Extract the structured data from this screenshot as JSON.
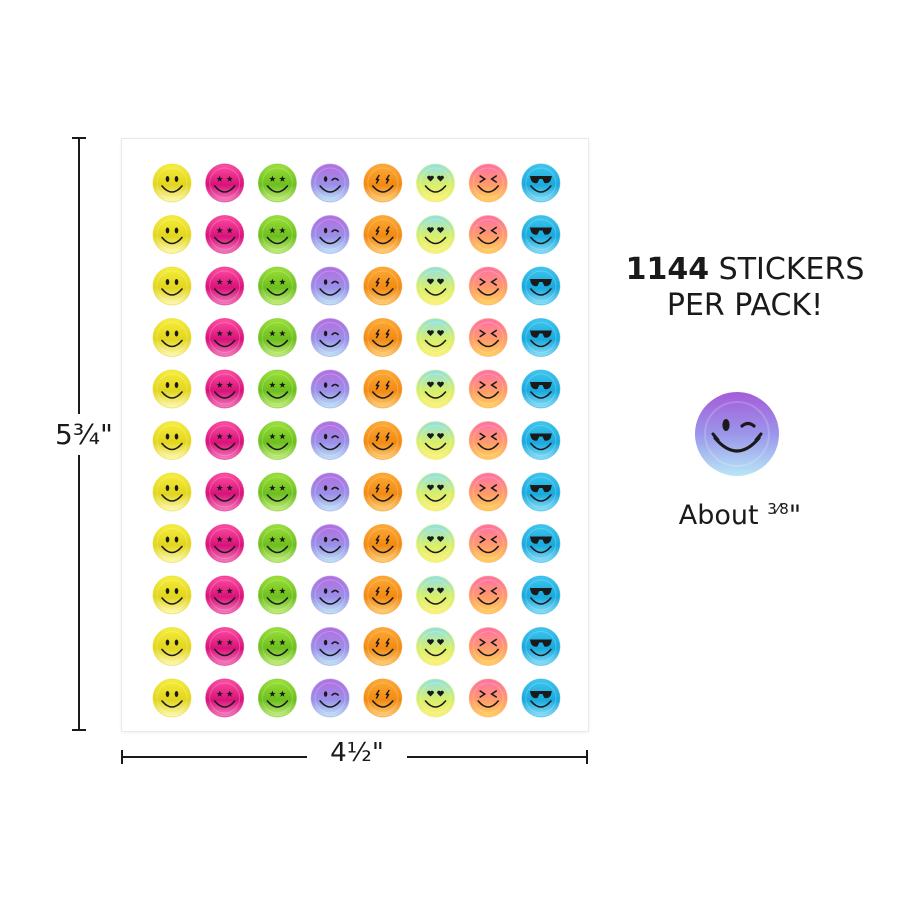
{
  "dimensions": {
    "height_label": "5¾\"",
    "width_label": "4½\""
  },
  "pack": {
    "count": "1144",
    "count_suffix": " STICKERS",
    "line2": "PER PACK!"
  },
  "sample": {
    "icon": "winking-smiley-icon",
    "size_prefix": "About ",
    "size_fraction": "3⁄8",
    "size_suffix": "\""
  },
  "sheet": {
    "rows": 11,
    "columns": [
      {
        "design": "classic-smile",
        "colors": [
          "#f7ee3c",
          "#e2d51d",
          "#fff9b8"
        ]
      },
      {
        "design": "star-eyes",
        "colors": [
          "#ff4fa3",
          "#d9117a",
          "#f47fc0"
        ]
      },
      {
        "design": "star-eyes-green",
        "colors": [
          "#9de13a",
          "#6cbf1d",
          "#c6ef7f"
        ]
      },
      {
        "design": "wink",
        "colors": [
          "#b56de0",
          "#9a8fe8",
          "#bfe6f6"
        ]
      },
      {
        "design": "lightning-eyes",
        "colors": [
          "#ffab36",
          "#f28a12",
          "#ffd07a"
        ]
      },
      {
        "design": "heart-eyes",
        "colors": [
          "#8ee1e8",
          "#d9ef6a",
          "#fff07a"
        ]
      },
      {
        "design": "squint",
        "colors": [
          "#ff6fa8",
          "#ff9b6a",
          "#ffd35a"
        ]
      },
      {
        "design": "sunglasses",
        "colors": [
          "#3fc6ee",
          "#18a9de",
          "#8fe0f7"
        ]
      }
    ]
  }
}
